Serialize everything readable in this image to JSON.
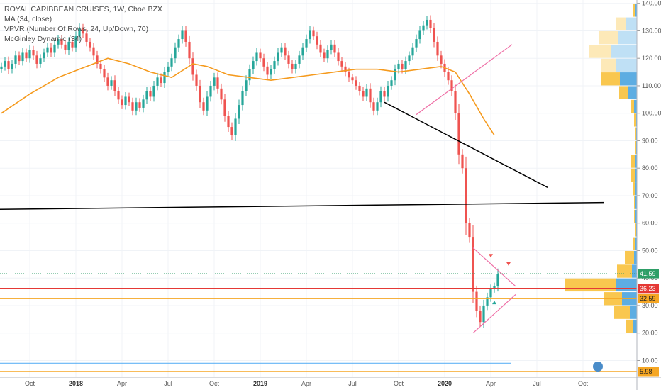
{
  "legend": {
    "title": "ROYAL CARIBBEAN CRUISES, 1W, Cboe BZX",
    "ma": "MA (34, close)",
    "vpvr": "VPVR (Number Of Rows, 24, Up/Down, 70)",
    "mcginley": "McGinley Dynamic (34)"
  },
  "colors": {
    "up": "#26a69a",
    "down": "#ef5350",
    "ma": "#f59a1d",
    "vp_up": "#5dade2",
    "vp_down": "#f9c74f",
    "vp_up_va": "#bfe0f5",
    "vp_down_va": "#fde9b8",
    "price_tag": "#2e9e67",
    "red_line": "#e53935",
    "orange_line": "#f5a623",
    "blue_line": "#64b5f6"
  },
  "chart_data": {
    "type": "candlestick",
    "title": "ROYAL CARIBBEAN CRUISES, 1W, Cboe BZX",
    "ylim": [
      5,
      141
    ],
    "y_ticks": [
      10,
      20,
      30,
      40,
      50,
      60,
      70,
      80,
      90,
      100,
      110,
      120,
      130,
      140
    ],
    "x_ticks": [
      {
        "label": "Oct",
        "bold": false,
        "week": 8
      },
      {
        "label": "2018",
        "bold": true,
        "week": 21
      },
      {
        "label": "Apr",
        "bold": false,
        "week": 34
      },
      {
        "label": "Jul",
        "bold": false,
        "week": 47
      },
      {
        "label": "Oct",
        "bold": false,
        "week": 60
      },
      {
        "label": "2019",
        "bold": true,
        "week": 73
      },
      {
        "label": "Apr",
        "bold": false,
        "week": 86
      },
      {
        "label": "Jul",
        "bold": false,
        "week": 99
      },
      {
        "label": "Oct",
        "bold": false,
        "week": 112
      },
      {
        "label": "2020",
        "bold": true,
        "week": 125
      },
      {
        "label": "Apr",
        "bold": false,
        "week": 138
      },
      {
        "label": "Jul",
        "bold": false,
        "week": 151
      },
      {
        "label": "Oct",
        "bold": false,
        "week": 164
      }
    ],
    "closes": [
      117,
      119,
      116,
      118,
      121,
      119,
      122,
      120,
      123,
      121,
      118,
      120,
      122,
      124,
      122,
      125,
      127,
      125,
      123,
      126,
      124,
      128,
      131,
      129,
      126,
      124,
      121,
      118,
      116,
      113,
      110,
      112,
      108,
      105,
      103,
      106,
      104,
      101,
      104,
      102,
      105,
      108,
      106,
      110,
      113,
      111,
      115,
      117,
      120,
      124,
      127,
      130,
      126,
      120,
      114,
      110,
      104,
      101,
      106,
      110,
      113,
      109,
      105,
      99,
      95,
      92,
      98,
      103,
      108,
      112,
      116,
      119,
      122,
      120,
      117,
      114,
      116,
      119,
      122,
      124,
      121,
      118,
      116,
      118,
      121,
      124,
      127,
      130,
      128,
      125,
      122,
      120,
      123,
      125,
      122,
      119,
      117,
      115,
      113,
      112,
      110,
      108,
      106,
      109,
      104,
      101,
      104,
      108,
      106,
      110,
      112,
      116,
      118,
      116,
      119,
      121,
      124,
      127,
      130,
      132,
      134,
      131,
      126,
      121,
      118,
      115,
      112,
      108,
      100,
      85,
      80,
      60,
      55,
      35,
      28,
      24,
      30,
      33,
      36,
      37,
      41.59
    ],
    "ma34_points": [
      [
        0,
        100
      ],
      [
        8,
        107
      ],
      [
        16,
        113
      ],
      [
        24,
        117
      ],
      [
        30,
        120
      ],
      [
        36,
        118
      ],
      [
        42,
        115
      ],
      [
        48,
        113
      ],
      [
        54,
        118
      ],
      [
        58,
        117
      ],
      [
        64,
        114
      ],
      [
        70,
        113
      ],
      [
        76,
        112
      ],
      [
        82,
        113
      ],
      [
        88,
        114
      ],
      [
        94,
        115
      ],
      [
        100,
        116
      ],
      [
        106,
        116
      ],
      [
        112,
        115
      ],
      [
        118,
        116
      ],
      [
        124,
        117
      ],
      [
        128,
        115
      ],
      [
        132,
        107
      ],
      [
        136,
        98
      ],
      [
        139,
        92
      ]
    ],
    "last_price": 41.59,
    "horizontal_levels": [
      {
        "name": "red-level",
        "value": 36.23,
        "label": "36.23"
      },
      {
        "name": "orange-level",
        "value": 32.59,
        "label": "32.59"
      },
      {
        "name": "orange-bottom-level",
        "value": 5.98,
        "label": "5.98"
      },
      {
        "name": "blue-level",
        "value": 9.0,
        "label": ""
      }
    ],
    "trendlines": [
      {
        "name": "black-horizontal-trendline",
        "color": "#000000",
        "points": [
          [
            -1,
            65
          ],
          [
            170,
            67.5
          ]
        ]
      },
      {
        "name": "black-descending-trendline",
        "color": "#000000",
        "points": [
          [
            108,
            104
          ],
          [
            154,
            73
          ]
        ]
      },
      {
        "name": "pink-ascending-trendline",
        "color": "#ef6fa6",
        "points": [
          [
            117,
            99.5
          ],
          [
            144,
            125
          ]
        ]
      },
      {
        "name": "pink-triangle-upper",
        "color": "#ef6fa6",
        "points": [
          [
            133,
            51
          ],
          [
            145,
            37
          ]
        ]
      },
      {
        "name": "pink-triangle-lower",
        "color": "#ef6fa6",
        "points": [
          [
            133,
            20
          ],
          [
            145,
            34
          ]
        ]
      }
    ],
    "volume_profile": [
      {
        "price": 137.5,
        "up": 3,
        "down": 3
      },
      {
        "price": 132.5,
        "up": 16,
        "down": 14
      },
      {
        "price": 127.5,
        "up": 27,
        "down": 26
      },
      {
        "price": 122.5,
        "up": 37,
        "down": 30
      },
      {
        "price": 117.5,
        "up": 30,
        "down": 20
      },
      {
        "price": 112.5,
        "up": 24,
        "down": 26
      },
      {
        "price": 107.5,
        "up": 13,
        "down": 12
      },
      {
        "price": 102.5,
        "up": 4,
        "down": 4
      },
      {
        "price": 97.5,
        "up": 1,
        "down": 3
      },
      {
        "price": 92.5,
        "up": 1,
        "down": 1
      },
      {
        "price": 87.5,
        "up": 1,
        "down": 1
      },
      {
        "price": 82.5,
        "up": 3,
        "down": 5
      },
      {
        "price": 77.5,
        "up": 2,
        "down": 6
      },
      {
        "price": 72.5,
        "up": 2,
        "down": 3
      },
      {
        "price": 67.5,
        "up": 2,
        "down": 2
      },
      {
        "price": 62.5,
        "up": 2,
        "down": 2
      },
      {
        "price": 57.5,
        "up": 1,
        "down": 1
      },
      {
        "price": 52.5,
        "up": 2,
        "down": 3
      },
      {
        "price": 47.5,
        "up": 4,
        "down": 13
      },
      {
        "price": 42.5,
        "up": 7,
        "down": 21
      },
      {
        "price": 37.5,
        "up": 30,
        "down": 71
      },
      {
        "price": 32.5,
        "up": 21,
        "down": 25
      },
      {
        "price": 27.5,
        "up": 10,
        "down": 22
      },
      {
        "price": 22.5,
        "up": 5,
        "down": 11
      }
    ]
  },
  "axis": {
    "last_price_label": "41.59"
  }
}
